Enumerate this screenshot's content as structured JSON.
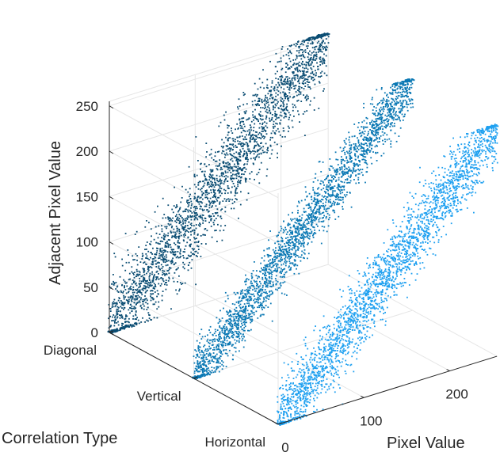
{
  "chart_data": {
    "type": "scatter",
    "view": "3d",
    "title": "",
    "xlabel": "Pixel Value",
    "ylabel": "Correlation Type",
    "zlabel": "Adjacent Pixel Value",
    "xlim": [
      0,
      255
    ],
    "zlim": [
      0,
      255
    ],
    "xticks": [
      0,
      100,
      200
    ],
    "zticks": [
      0,
      50,
      100,
      150,
      200,
      250
    ],
    "categories": [
      "Horizontal",
      "Vertical",
      "Diagonal"
    ],
    "grid": true,
    "series": [
      {
        "name": "Horizontal",
        "color": "#1ea0f0",
        "x_range": [
          0,
          255
        ],
        "y_relation": "y ≈ x",
        "spread": 55
      },
      {
        "name": "Vertical",
        "color": "#0a78b4",
        "x_range": [
          0,
          255
        ],
        "y_relation": "y ≈ x",
        "spread": 45
      },
      {
        "name": "Diagonal",
        "color": "#0a4d73",
        "x_range": [
          0,
          255
        ],
        "y_relation": "y ≈ x",
        "spread": 70
      }
    ]
  }
}
